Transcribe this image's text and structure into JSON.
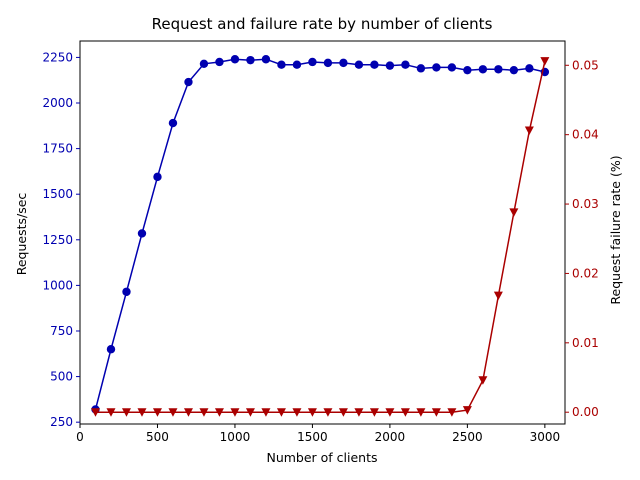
{
  "chart_data": {
    "type": "line",
    "title": "Request and failure rate by number of clients",
    "xlabel": "Number of clients",
    "ylabel_left": "Requests/sec",
    "ylabel_right": "Request failure rate (%)",
    "xlim": [
      0,
      3130
    ],
    "ylim_left": [
      240,
      2340
    ],
    "ylim_right": [
      -0.0017,
      0.0535
    ],
    "x_ticks": [
      0,
      500,
      1000,
      1500,
      2000,
      2500,
      3000
    ],
    "y_left_ticks": [
      250,
      500,
      750,
      1000,
      1250,
      1500,
      1750,
      2000,
      2250
    ],
    "y_right_ticks": [
      0.0,
      0.01,
      0.02,
      0.03,
      0.04,
      0.05
    ],
    "y_right_tick_labels": [
      "0.00",
      "0.01",
      "0.02",
      "0.03",
      "0.04",
      "0.05"
    ],
    "legend": "none",
    "grid": false,
    "x": [
      100,
      200,
      300,
      400,
      500,
      600,
      700,
      800,
      900,
      1000,
      1100,
      1200,
      1300,
      1400,
      1500,
      1600,
      1700,
      1800,
      1900,
      2000,
      2100,
      2200,
      2300,
      2400,
      2500,
      2600,
      2700,
      2800,
      2900,
      3000
    ],
    "series": [
      {
        "axis": "left",
        "color": "#0000b0",
        "marker": "circle",
        "values": [
          320,
          650,
          965,
          1285,
          1595,
          1890,
          2115,
          2215,
          2225,
          2240,
          2235,
          2240,
          2210,
          2210,
          2225,
          2220,
          2220,
          2210,
          2210,
          2205,
          2210,
          2190,
          2195,
          2195,
          2180,
          2185,
          2185,
          2180,
          2190,
          2170
        ]
      },
      {
        "axis": "right",
        "color": "#aa0000",
        "marker": "triangle-down",
        "values": [
          0,
          0,
          0,
          0,
          0,
          0,
          0,
          0,
          0,
          0,
          0,
          0,
          0,
          0,
          0,
          0,
          0,
          0,
          0,
          0,
          0,
          0,
          0,
          0,
          0.0003,
          0.0046,
          0.0168,
          0.0288,
          0.0406,
          0.0506
        ]
      }
    ]
  }
}
